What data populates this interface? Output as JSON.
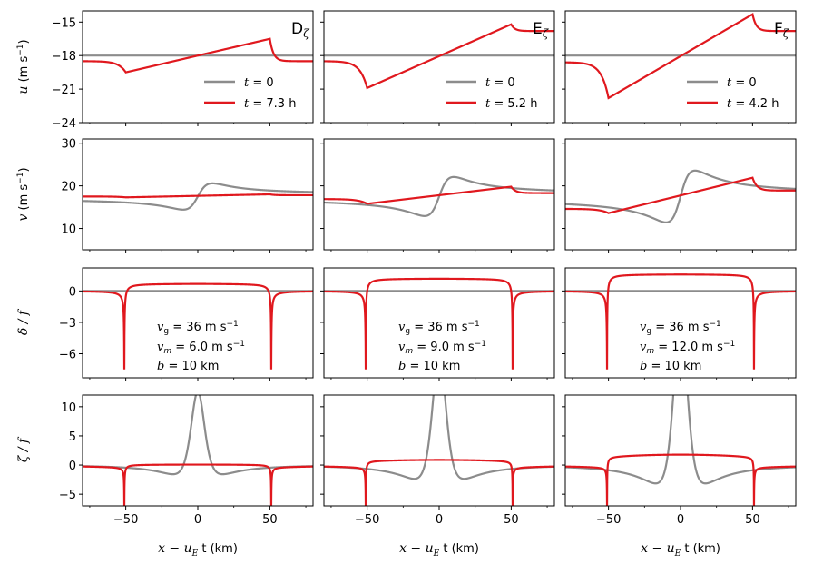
{
  "figure": {
    "type": "line",
    "layout": "4 rows x 3 columns of line plots"
  },
  "colors": {
    "initial": "#8c8c8c",
    "evolved": "#e0181e",
    "axes": "#000000"
  },
  "columns": [
    {
      "label": "D",
      "subscript": "ζ",
      "time": "7.3 h",
      "vg": "36 m s",
      "vm": "6.0 m s",
      "b": "10 km",
      "um": 6.0,
      "u_pre": -18.5,
      "u_post": -18.5,
      "u_left": -19.5,
      "u_right": -16.5,
      "v_left": 17.3,
      "v_right": 18.0,
      "v_pre": 17.5,
      "v_post": 17.8,
      "delta_mid": 0.7,
      "zeta_mid": 0.1
    },
    {
      "label": "E",
      "subscript": "ζ",
      "time": "5.2 h",
      "vg": "36 m s",
      "vm": "9.0 m s",
      "b": "10 km",
      "um": 9.0,
      "u_pre": -18.5,
      "u_post": -15.8,
      "u_left": -20.9,
      "u_right": -15.2,
      "v_left": 15.8,
      "v_right": 19.8,
      "v_pre": 16.9,
      "v_post": 18.3,
      "delta_mid": 1.2,
      "zeta_mid": 0.9
    },
    {
      "label": "F",
      "subscript": "ζ",
      "time": "4.2 h",
      "vg": "36 m s",
      "vm": "12.0 m s",
      "b": "10 km",
      "um": 12.0,
      "u_pre": -18.6,
      "u_post": -15.8,
      "u_left": -21.8,
      "u_right": -14.3,
      "v_left": 13.6,
      "v_right": 21.9,
      "v_pre": 14.6,
      "v_post": 18.9,
      "delta_mid": 1.6,
      "zeta_mid": 1.8
    }
  ],
  "legend": {
    "t0": "t = 0",
    "t_prefix": "t = "
  },
  "annotation": {
    "vg_prefix": "v",
    "vg_sub": "g",
    "vm_prefix": "v",
    "vm_sub": "m",
    "exp": "−1",
    "b_prefix": "b = "
  },
  "chart_data": [
    {
      "type": "line",
      "row": "u",
      "ylabel": "u (m s−1)",
      "ylim": [
        -24,
        -14
      ],
      "yticks": [
        -24,
        -21,
        -18,
        -15
      ],
      "xlim": [
        -80,
        80
      ],
      "xticks": [],
      "initial_value": -18,
      "series": [
        "t = 0",
        "t = 7.3 h / 5.2 h / 4.2 h"
      ]
    },
    {
      "type": "line",
      "row": "v",
      "ylabel": "v (m s−1)",
      "ylim": [
        5,
        31
      ],
      "yticks": [
        10,
        20,
        30
      ],
      "xlim": [
        -80,
        80
      ],
      "xticks": [],
      "initial_profile": "mean 17.5, amplitude 6 (D), 9 (E), 12 (F), width 10 km"
    },
    {
      "type": "line",
      "row": "delta",
      "ylabel": "δ/f",
      "ylim": [
        -8.3,
        2.2
      ],
      "yticks": [
        -6,
        -3,
        0
      ],
      "xlim": [
        -80,
        80
      ],
      "xticks": [],
      "initial_value": 0
    },
    {
      "type": "line",
      "row": "zeta",
      "ylabel": "ζ/f",
      "ylim": [
        -7,
        12
      ],
      "yticks": [
        -5,
        0,
        5,
        10
      ],
      "xlim": [
        -80,
        80
      ],
      "xticks": [
        -50,
        0,
        50
      ],
      "xlabel": "x − u_E t (km)"
    }
  ],
  "axis_text": {
    "ylabels": {
      "u_sym": "u",
      "v_sym": "v",
      "units": "(m s",
      "units_exp": "−1",
      "units_close": ")",
      "delta": "δ / f",
      "zeta": "ζ / f"
    },
    "xlabel_main": "x − u",
    "xlabel_sub": "E",
    "xlabel_tail": "t (km)"
  }
}
